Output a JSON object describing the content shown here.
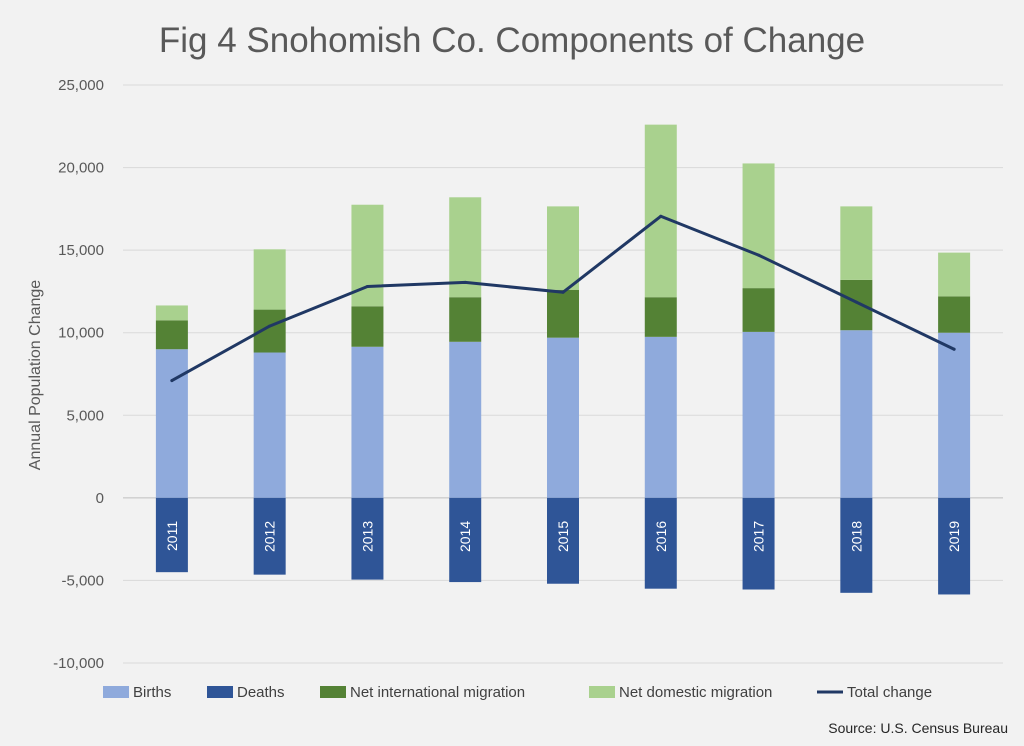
{
  "chart_data": {
    "type": "bar",
    "stacked": true,
    "title": "Fig 4 Snohomish Co. Components of Change",
    "ylabel": "Annual Population Change",
    "source": "Source: U.S. Census Bureau",
    "ylim": [
      -10000,
      25000
    ],
    "yticks": [
      25000,
      20000,
      15000,
      10000,
      5000,
      0,
      -5000,
      -10000
    ],
    "ytick_labels": [
      "25,000",
      "20,000",
      "15,000",
      "10,000",
      "5,000",
      "0",
      "-5,000",
      "-10,000"
    ],
    "grid": true,
    "legend_position": "bottom",
    "categories": [
      "2011",
      "2012",
      "2013",
      "2014",
      "2015",
      "2016",
      "2017",
      "2018",
      "2019"
    ],
    "series": [
      {
        "name": "Births",
        "kind": "bar",
        "color": "#8faadc",
        "values": [
          9000,
          8800,
          9150,
          9450,
          9700,
          9750,
          10050,
          10150,
          10000
        ]
      },
      {
        "name": "Deaths",
        "kind": "bar",
        "color": "#2f5597",
        "values": [
          -4500,
          -4650,
          -4950,
          -5100,
          -5200,
          -5500,
          -5550,
          -5750,
          -5850
        ]
      },
      {
        "name": "Net international migration",
        "kind": "bar",
        "color": "#548235",
        "values": [
          1750,
          2600,
          2450,
          2700,
          2900,
          2400,
          2650,
          3050,
          2200
        ]
      },
      {
        "name": "Net domestic migration",
        "kind": "bar",
        "color": "#a9d18e",
        "values": [
          900,
          3650,
          6150,
          6050,
          5050,
          10450,
          7550,
          4450,
          2650
        ]
      },
      {
        "name": "Total change",
        "kind": "line",
        "color": "#203864",
        "values": [
          7100,
          10400,
          12800,
          13050,
          12450,
          17050,
          14700,
          11850,
          9000
        ]
      }
    ]
  }
}
